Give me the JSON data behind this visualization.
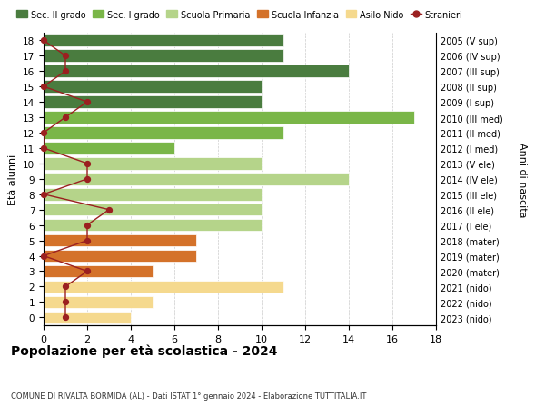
{
  "ages": [
    18,
    17,
    16,
    15,
    14,
    13,
    12,
    11,
    10,
    9,
    8,
    7,
    6,
    5,
    4,
    3,
    2,
    1,
    0
  ],
  "years_labels": [
    "2005 (V sup)",
    "2006 (IV sup)",
    "2007 (III sup)",
    "2008 (II sup)",
    "2009 (I sup)",
    "2010 (III med)",
    "2011 (II med)",
    "2012 (I med)",
    "2013 (V ele)",
    "2014 (IV ele)",
    "2015 (III ele)",
    "2016 (II ele)",
    "2017 (I ele)",
    "2018 (mater)",
    "2019 (mater)",
    "2020 (mater)",
    "2021 (nido)",
    "2022 (nido)",
    "2023 (nido)"
  ],
  "bar_values": [
    11,
    11,
    14,
    10,
    10,
    17,
    11,
    6,
    10,
    14,
    10,
    10,
    10,
    7,
    7,
    5,
    11,
    5,
    4
  ],
  "bar_colors": [
    "#4a7c3f",
    "#4a7c3f",
    "#4a7c3f",
    "#4a7c3f",
    "#4a7c3f",
    "#7ab648",
    "#7ab648",
    "#7ab648",
    "#b5d48a",
    "#b5d48a",
    "#b5d48a",
    "#b5d48a",
    "#b5d48a",
    "#d4722a",
    "#d4722a",
    "#d4722a",
    "#f5d98e",
    "#f5d98e",
    "#f5d98e"
  ],
  "stranieri_values": [
    0,
    1,
    1,
    0,
    2,
    1,
    0,
    0,
    2,
    2,
    0,
    3,
    2,
    2,
    0,
    2,
    1,
    1,
    1
  ],
  "stranieri_color": "#9b2020",
  "legend_entries": [
    {
      "label": "Sec. II grado",
      "color": "#4a7c3f"
    },
    {
      "label": "Sec. I grado",
      "color": "#7ab648"
    },
    {
      "label": "Scuola Primaria",
      "color": "#b5d48a"
    },
    {
      "label": "Scuola Infanzia",
      "color": "#d4722a"
    },
    {
      "label": "Asilo Nido",
      "color": "#f5d98e"
    },
    {
      "label": "Stranieri",
      "color": "#9b2020"
    }
  ],
  "ylabel_left": "Età alunni",
  "ylabel_right": "Anni di nascita",
  "xlim": [
    0,
    18
  ],
  "xticks": [
    0,
    2,
    4,
    6,
    8,
    10,
    12,
    14,
    16,
    18
  ],
  "title": "Popolazione per età scolastica - 2024",
  "subtitle": "COMUNE DI RIVALTA BORMIDA (AL) - Dati ISTAT 1° gennaio 2024 - Elaborazione TUTTITALIA.IT",
  "bg_color": "#ffffff",
  "bar_height": 0.8
}
